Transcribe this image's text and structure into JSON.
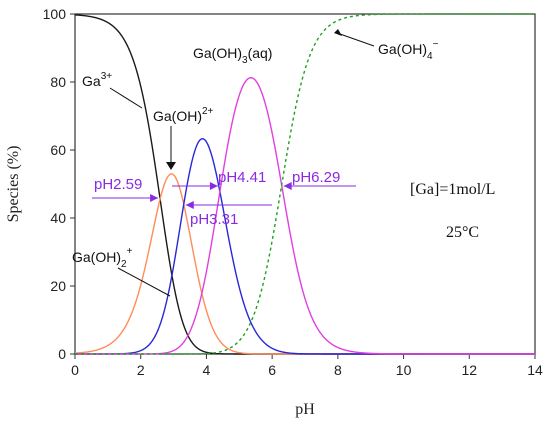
{
  "chart_data": {
    "type": "line",
    "title": "",
    "xlabel": "pH",
    "ylabel": "Species (%)",
    "xlim": [
      0,
      14
    ],
    "ylim": [
      0,
      100
    ],
    "xticks": [
      0,
      2,
      4,
      6,
      8,
      10,
      12,
      14
    ],
    "yticks": [
      0,
      20,
      40,
      60,
      80,
      100
    ],
    "grid": false,
    "model": {
      "pK1": 2.59,
      "pK2": 3.31,
      "pK3": 4.41,
      "pK4": 6.29
    },
    "series": [
      {
        "name": "Ga3+",
        "label_main": "Ga",
        "label_sup": "3+",
        "color": "#1a1a1a",
        "dash": "none",
        "x": [
          0,
          1,
          2,
          2.5,
          2.59,
          3,
          3.5,
          4,
          5
        ],
        "y": [
          99.7,
          97.5,
          79.5,
          49.5,
          44.5,
          27.5,
          9.2,
          2.4,
          0.1
        ]
      },
      {
        "name": "Ga(OH)2+",
        "label_main": "Ga(OH)",
        "label_sup": "2+",
        "color": "#ff8c5a",
        "dash": "none",
        "x": [
          1,
          2,
          2.59,
          3,
          3.5,
          4,
          4.5,
          5
        ],
        "y": [
          2.5,
          20.5,
          44.5,
          51.8,
          43.5,
          22.5,
          8.5,
          2.0
        ]
      },
      {
        "name": "Ga(OH)2+ (second)",
        "label_main": "Ga(OH)",
        "label_sub": "2",
        "label_sup": "+",
        "color": "#2828d8",
        "dash": "none",
        "x": [
          2,
          2.5,
          3,
          3.31,
          3.5,
          4,
          4.41,
          5,
          6
        ],
        "y": [
          1.2,
          6.5,
          18.8,
          33.5,
          43.0,
          62.0,
          45.5,
          22.5,
          2.3
        ]
      },
      {
        "name": "Ga(OH)3(aq)",
        "label_main": "Ga(OH)",
        "label_sub": "3",
        "label_tail": "(aq)",
        "color": "#e040e0",
        "dash": "none",
        "x": [
          3,
          4,
          4.41,
          5,
          5.5,
          6,
          6.29,
          7,
          8,
          9
        ],
        "y": [
          1.5,
          24.5,
          45.5,
          74.5,
          81.5,
          62.0,
          48.5,
          16.0,
          2.2,
          0.2
        ]
      },
      {
        "name": "Ga(OH)4-",
        "label_main": "Ga(OH)",
        "label_sub": "4",
        "label_sup": "−",
        "color": "#1fa11f",
        "dash": "3,3",
        "x": [
          5,
          6,
          6.29,
          7,
          8,
          9,
          10,
          14
        ],
        "y": [
          3.0,
          33.9,
          49.5,
          83.5,
          98.0,
          99.8,
          100,
          100
        ]
      }
    ],
    "annotations": {
      "ph_markers": [
        {
          "text": "pH2.59",
          "x": 2.59,
          "y": 46,
          "side": "left"
        },
        {
          "text": "pH3.31",
          "x": 3.31,
          "y": 43,
          "side": "right"
        },
        {
          "text": "pH4.41",
          "x": 4.41,
          "y": 50,
          "side": "left"
        },
        {
          "text": "pH6.29",
          "x": 6.29,
          "y": 50,
          "side": "right"
        }
      ],
      "conditions": [
        "[Ga]=1mol/L",
        "25°C"
      ]
    }
  }
}
